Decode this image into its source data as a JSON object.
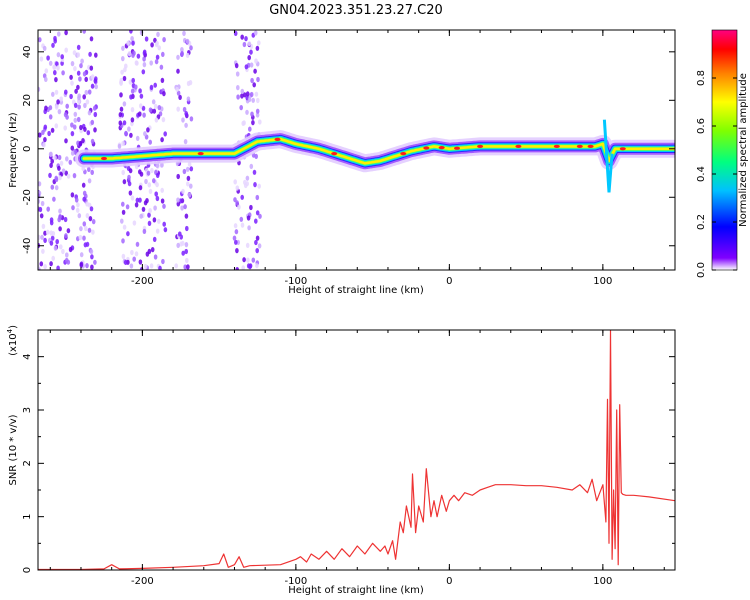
{
  "title": "GN04.2023.351.23.27.C20",
  "chart_data": [
    {
      "type": "heatmap",
      "xlabel": "Height of straight line (km)",
      "ylabel": "Frequency (Hz)",
      "xlim": [
        -268,
        147
      ],
      "ylim": [
        -50,
        49
      ],
      "x_ticks": [
        -200,
        -100,
        0,
        100
      ],
      "y_ticks": [
        -40,
        -20,
        0,
        20,
        40
      ],
      "colorbar": {
        "label": "Normalized spectral amplitude",
        "range": [
          0,
          1
        ],
        "ticks": [
          0.0,
          0.2,
          0.4,
          0.6,
          0.8
        ],
        "colormap": [
          "#ffffff",
          "#8000ff",
          "#0000ff",
          "#00c0ff",
          "#00ff80",
          "#80ff00",
          "#ffff00",
          "#ff8000",
          "#ff0000",
          "#ff0080"
        ]
      },
      "noise_bands_x": [
        [
          -268,
          -230
        ],
        [
          -215,
          -185
        ],
        [
          -178,
          -168
        ],
        [
          -140,
          -123
        ]
      ],
      "ridge": {
        "x": [
          -238,
          -220,
          -200,
          -180,
          -160,
          -140,
          -125,
          -110,
          -100,
          -85,
          -70,
          -55,
          -45,
          -35,
          -25,
          -10,
          0,
          20,
          40,
          60,
          80,
          95,
          100,
          104,
          108,
          120,
          147
        ],
        "freq": [
          -4,
          -4,
          -3,
          -2,
          -2,
          -2,
          3,
          4,
          2,
          0,
          -3,
          -6,
          -5,
          -3,
          -1,
          1,
          0,
          1,
          1,
          1,
          1,
          1,
          2,
          -5,
          0,
          0,
          0
        ]
      }
    },
    {
      "type": "line",
      "xlabel": "Height of straight line (km)",
      "ylabel": "SNR (10 * v/v)",
      "y_multiplier": "(x10",
      "y_multiplier_exp": "4",
      "xlim": [
        -268,
        147
      ],
      "ylim": [
        0,
        4.5
      ],
      "x_ticks": [
        -200,
        -100,
        0,
        100
      ],
      "y_ticks": [
        0,
        1,
        2,
        3,
        4
      ],
      "series": [
        {
          "color": "#ee3333",
          "x": [
            -268,
            -240,
            -225,
            -220,
            -215,
            -200,
            -180,
            -160,
            -150,
            -147,
            -144,
            -140,
            -137,
            -134,
            -130,
            -110,
            -100,
            -97,
            -93,
            -90,
            -85,
            -80,
            -75,
            -70,
            -65,
            -60,
            -55,
            -50,
            -45,
            -42,
            -40,
            -37,
            -35,
            -32,
            -30,
            -28,
            -25,
            -24,
            -22,
            -20,
            -17,
            -15,
            -12,
            -10,
            -8,
            -5,
            -2,
            0,
            3,
            6,
            10,
            15,
            20,
            25,
            30,
            40,
            50,
            60,
            70,
            80,
            85,
            90,
            93,
            96,
            100,
            102,
            103,
            104,
            105,
            106,
            107,
            108,
            109,
            110,
            111,
            112,
            113,
            115,
            120,
            130,
            147
          ],
          "y": [
            0.01,
            0.01,
            0.02,
            0.1,
            0.02,
            0.03,
            0.05,
            0.08,
            0.12,
            0.3,
            0.05,
            0.1,
            0.25,
            0.05,
            0.08,
            0.1,
            0.2,
            0.25,
            0.15,
            0.3,
            0.2,
            0.35,
            0.2,
            0.4,
            0.25,
            0.45,
            0.3,
            0.5,
            0.35,
            0.45,
            0.3,
            0.55,
            0.2,
            0.9,
            0.7,
            1.2,
            0.8,
            1.8,
            0.7,
            1.2,
            0.9,
            1.9,
            1.0,
            1.3,
            1.0,
            1.4,
            1.1,
            1.3,
            1.4,
            1.3,
            1.45,
            1.4,
            1.5,
            1.55,
            1.6,
            1.6,
            1.58,
            1.58,
            1.55,
            1.5,
            1.6,
            1.45,
            1.7,
            1.3,
            1.6,
            0.9,
            3.2,
            0.5,
            4.5,
            0.2,
            1.5,
            0.4,
            3.0,
            0.1,
            3.1,
            1.45,
            1.42,
            1.4,
            1.4,
            1.37,
            1.3
          ]
        }
      ]
    }
  ]
}
